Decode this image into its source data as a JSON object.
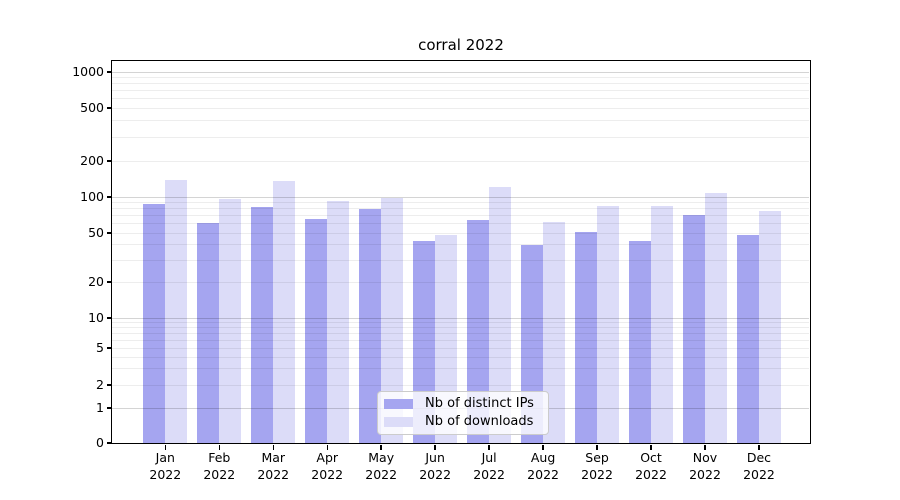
{
  "chart_data": {
    "type": "bar",
    "title": "corral 2022",
    "categories": [
      "Jan 2022",
      "Feb 2022",
      "Mar 2022",
      "Apr 2022",
      "May 2022",
      "Jun 2022",
      "Jul 2022",
      "Aug 2022",
      "Sep 2022",
      "Oct 2022",
      "Nov 2022",
      "Dec 2022"
    ],
    "series": [
      {
        "name": "Nb of distinct IPs",
        "color": "#a5a5f0",
        "values": [
          88,
          61,
          82,
          65,
          80,
          43,
          64,
          40,
          51,
          43,
          71,
          48
        ]
      },
      {
        "name": "Nb of downloads",
        "color": "#dcdcf8",
        "values": [
          139,
          97,
          137,
          92,
          98,
          48,
          122,
          62,
          84,
          84,
          107,
          76
        ]
      }
    ],
    "y_axis": {
      "scale": "symlog",
      "ticks": [
        0,
        1,
        2,
        5,
        10,
        20,
        50,
        100,
        200,
        500,
        1000
      ],
      "major_gridline_values": [
        1,
        10,
        100,
        1000
      ],
      "range": [
        0,
        1200
      ]
    },
    "x_axis": {
      "tick_label_lines": 2
    },
    "legend": {
      "position": "lower center"
    },
    "grid": true,
    "background_color": "#ffffff"
  }
}
